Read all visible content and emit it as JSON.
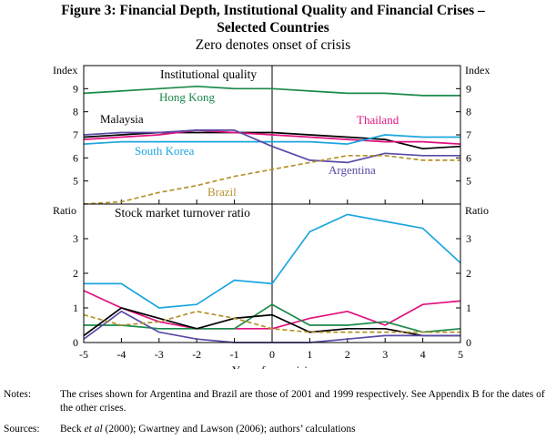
{
  "figure": {
    "title_line1": "Figure 3: Financial Depth, Institutional Quality and Financial Crises –",
    "title_line2": "Selected Countries",
    "subtitle": "Zero denotes onset of crisis"
  },
  "chart_data": [
    {
      "type": "line",
      "title": "Institutional quality",
      "ylabel_left": "Index",
      "ylabel_right": "Index",
      "xlabel": "Years from crisis",
      "ylim": [
        4,
        10
      ],
      "yticks": [
        "5",
        "6",
        "7",
        "8",
        "9"
      ],
      "ytick_values": [
        5,
        6,
        7,
        8,
        9
      ],
      "categories": [
        -5,
        -4,
        -3,
        -2,
        -1,
        0,
        1,
        2,
        3,
        4,
        5
      ],
      "series": [
        {
          "name": "Hong Kong",
          "color": "#1b8a4a",
          "dash": "",
          "values": [
            8.8,
            8.9,
            9.0,
            9.1,
            9.0,
            9.0,
            8.9,
            8.8,
            8.8,
            8.7,
            8.7
          ]
        },
        {
          "name": "Malaysia",
          "color": "#000000",
          "dash": "",
          "values": [
            6.9,
            7.0,
            7.1,
            7.1,
            7.1,
            7.1,
            7.0,
            6.9,
            6.8,
            6.4,
            6.5
          ]
        },
        {
          "name": "Thailand",
          "color": "#e0117f",
          "dash": "",
          "values": [
            6.8,
            6.9,
            7.0,
            7.2,
            7.1,
            7.0,
            6.9,
            6.8,
            6.7,
            6.7,
            6.6
          ]
        },
        {
          "name": "South Korea",
          "color": "#1ca6e0",
          "dash": "",
          "values": [
            6.6,
            6.7,
            6.7,
            6.7,
            6.7,
            6.7,
            6.7,
            6.6,
            7.0,
            6.9,
            6.9
          ]
        },
        {
          "name": "Argentina",
          "color": "#5a4aa6",
          "dash": "",
          "values": [
            7.0,
            7.1,
            7.1,
            7.2,
            7.2,
            6.5,
            5.9,
            5.8,
            6.2,
            6.1,
            6.1
          ]
        },
        {
          "name": "Brazil",
          "color": "#b5902a",
          "dash": "5,3",
          "values": [
            4.0,
            4.1,
            4.5,
            4.8,
            5.2,
            5.5,
            5.8,
            6.1,
            6.1,
            5.9,
            5.9
          ]
        }
      ],
      "labels": [
        "Hong Kong",
        "Malaysia",
        "Thailand",
        "South Korea",
        "Argentina",
        "Brazil"
      ]
    },
    {
      "type": "line",
      "title": "Stock market turnover ratio",
      "ylabel_left": "Ratio",
      "ylabel_right": "Ratio",
      "xlabel": "Years from crisis",
      "ylim": [
        0,
        4
      ],
      "yticks": [
        "0",
        "1",
        "2",
        "3"
      ],
      "ytick_values": [
        0,
        1,
        2,
        3
      ],
      "categories": [
        -5,
        -4,
        -3,
        -2,
        -1,
        0,
        1,
        2,
        3,
        4,
        5
      ],
      "xticks": [
        "-5",
        "-4",
        "-3",
        "-2",
        "-1",
        "0",
        "1",
        "2",
        "3",
        "4",
        "5"
      ],
      "series": [
        {
          "name": "South Korea",
          "color": "#1ca6e0",
          "dash": "",
          "values": [
            1.7,
            1.7,
            1.0,
            1.1,
            1.8,
            1.7,
            3.2,
            3.7,
            3.5,
            3.3,
            2.3
          ]
        },
        {
          "name": "Thailand",
          "color": "#e0117f",
          "dash": "",
          "values": [
            1.5,
            1.0,
            0.6,
            0.4,
            0.4,
            0.4,
            0.7,
            0.9,
            0.5,
            1.1,
            1.2
          ]
        },
        {
          "name": "Hong Kong",
          "color": "#1b8a4a",
          "dash": "",
          "values": [
            0.5,
            0.5,
            0.4,
            0.4,
            0.4,
            1.1,
            0.5,
            0.5,
            0.6,
            0.3,
            0.4
          ]
        },
        {
          "name": "Malaysia",
          "color": "#000000",
          "dash": "",
          "values": [
            0.2,
            1.0,
            0.7,
            0.4,
            0.7,
            0.8,
            0.3,
            0.4,
            0.4,
            0.2,
            0.2
          ]
        },
        {
          "name": "Argentina",
          "color": "#5a4aa6",
          "dash": "",
          "values": [
            0.1,
            0.9,
            0.3,
            0.1,
            0.0,
            0.0,
            0.0,
            0.1,
            0.2,
            0.2,
            0.2
          ]
        },
        {
          "name": "Brazil",
          "color": "#b5902a",
          "dash": "5,3",
          "values": [
            0.8,
            0.5,
            0.6,
            0.9,
            0.7,
            0.4,
            0.3,
            0.3,
            0.3,
            0.3,
            0.3
          ]
        }
      ]
    }
  ],
  "notes": {
    "notes_label": "Notes:",
    "notes_text": "The crises shown for Argentina and Brazil are those of 2001 and 1999 respectively. See Appendix B for the dates of the other crises.",
    "sources_label": "Sources:",
    "sources_text_before": "Beck ",
    "sources_text_italic": "et al",
    "sources_text_after": " (2000); Gwartney and Lawson (2006); authors’ calculations"
  }
}
